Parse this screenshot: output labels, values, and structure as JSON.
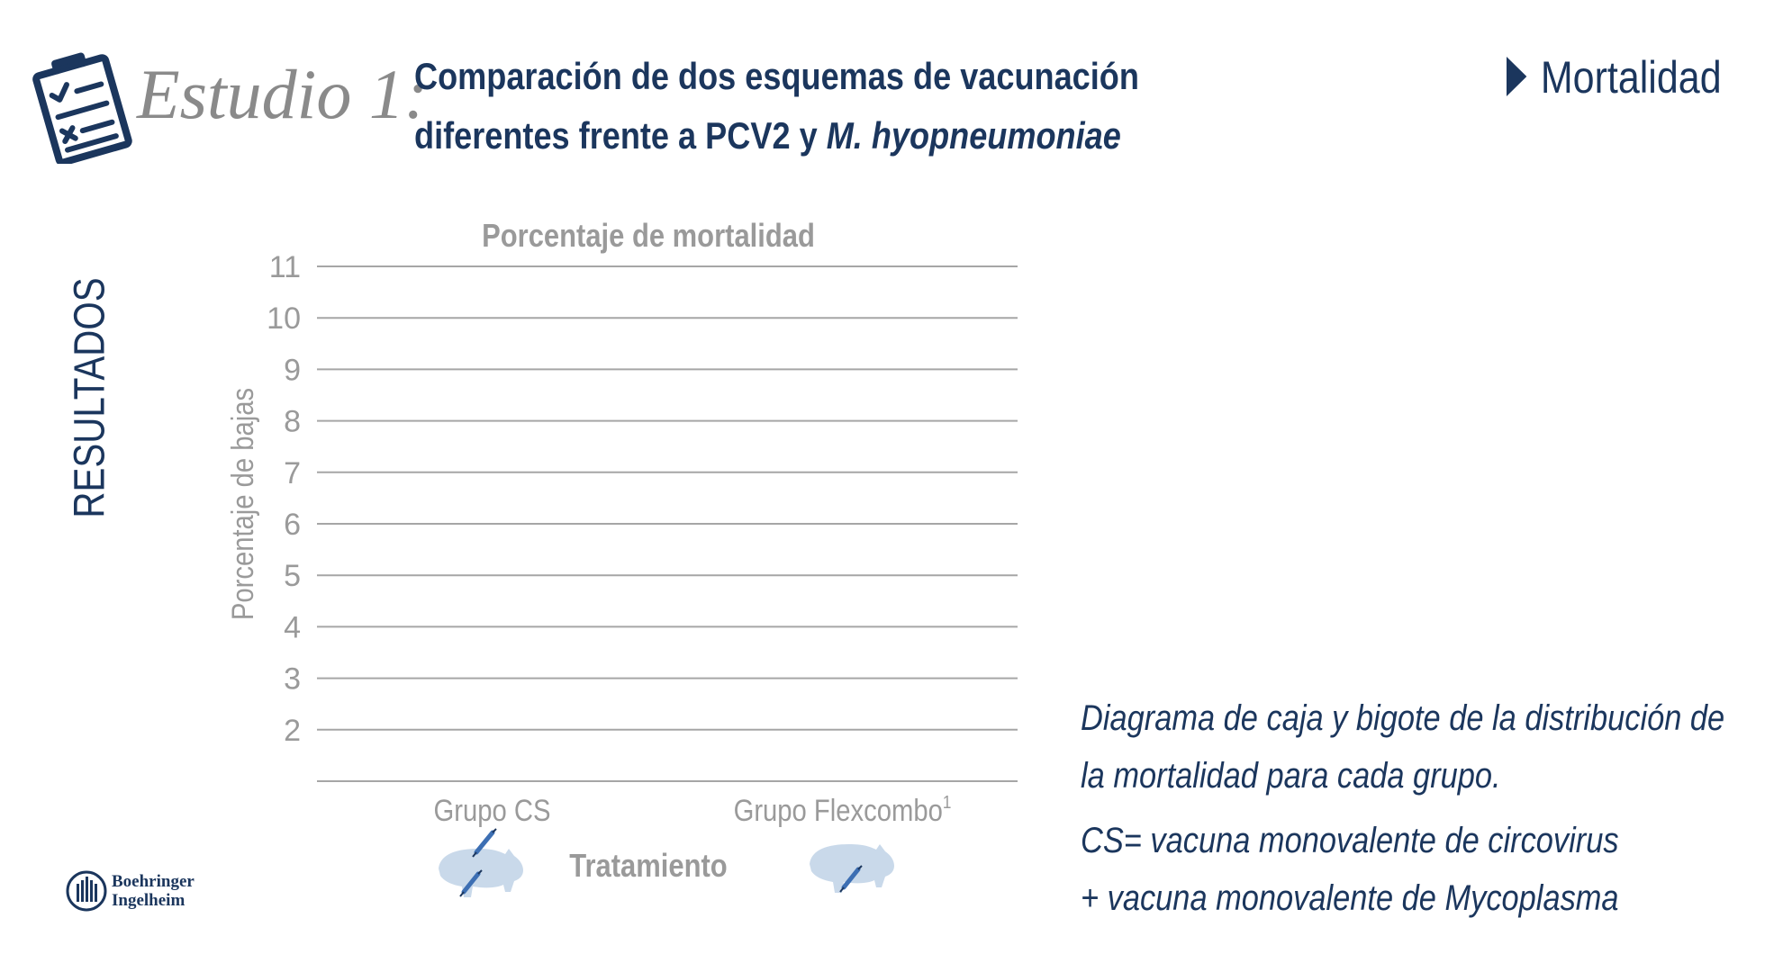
{
  "header": {
    "study_label": "Estudio 1:",
    "title_line1": "Comparación de dos esquemas de vacunación",
    "title_line2_prefix": "diferentes frente a PCV2 y ",
    "title_line2_italic": "M. hyopneumoniae",
    "section_tab": "Mortalidad",
    "section_label": "RESULTADOS"
  },
  "icons": {
    "clipboard": "clipboard-checklist-icon",
    "pig_cs": "pig-two-syringes-icon",
    "pig_flexcombo": "pig-one-syringe-icon",
    "section_arrow": "triangle-right-icon",
    "logo": "boehringer-ingelheim-logo"
  },
  "colors": {
    "brand_navy": "#1b365d",
    "gray_text": "#9a9a9a",
    "gridline": "#a6a6a6",
    "pig_fill": "#c9d9ea",
    "syringe_blue": "#3d6fb3"
  },
  "chart_data": {
    "type": "box",
    "title": "Porcentaje de mortalidad",
    "ylabel": "Porcentaje de bajas",
    "xlabel": "Tratamiento",
    "categories": [
      "Grupo CS",
      "Grupo Flexcombo"
    ],
    "category_superscripts": [
      "",
      "1"
    ],
    "ylim": [
      1,
      11
    ],
    "yticks": [
      2,
      3,
      4,
      5,
      6,
      7,
      8,
      9,
      10,
      11
    ],
    "grid": true,
    "series": []
  },
  "notes": {
    "line1": "Diagrama de caja y bigote de la distribución de",
    "line2": "la mortalidad para cada grupo.",
    "line3": "CS= vacuna monovalente de circovirus",
    "line4": "+ vacuna monovalente de Mycoplasma"
  },
  "logo": {
    "line1": "Boehringer",
    "line2": "Ingelheim"
  }
}
